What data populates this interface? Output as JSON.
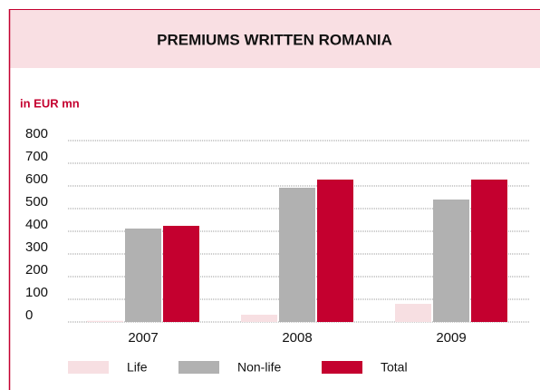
{
  "chart_data": {
    "type": "bar",
    "title": "PREMIUMS WRITTEN ROMANIA",
    "y_label": "in EUR mn",
    "categories": [
      "2007",
      "2008",
      "2009"
    ],
    "series": [
      {
        "name": "Life",
        "color": "#f7dfe2",
        "values": [
          5,
          32,
          80
        ]
      },
      {
        "name": "Non-life",
        "color": "#b1b1b1",
        "values": [
          412,
          592,
          540
        ]
      },
      {
        "name": "Total",
        "color": "#c4002f",
        "values": [
          424,
          628,
          628
        ]
      }
    ],
    "ylim": [
      0,
      800
    ],
    "yticks": [
      0,
      100,
      200,
      300,
      400,
      500,
      600,
      700,
      800
    ],
    "grid": true
  }
}
